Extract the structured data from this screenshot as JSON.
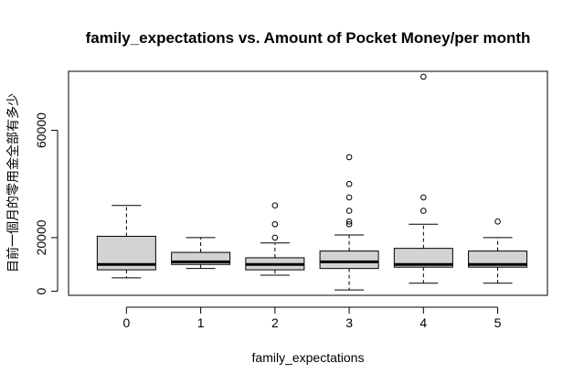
{
  "chart_data": {
    "type": "boxplot",
    "title": "family_expectations vs. Amount of Pocket Money/per month",
    "xlabel": "family_expectations",
    "ylabel": "目前一個月的零用金全部有多少",
    "categories": [
      "0",
      "1",
      "2",
      "3",
      "4",
      "5"
    ],
    "ylim": [
      -1500,
      82000
    ],
    "yticks": [
      0,
      20000,
      60000
    ],
    "box_fill": "#d3d3d3",
    "series": [
      {
        "category": "0",
        "whisker_low": 5000,
        "q1": 8000,
        "median": 10000,
        "q3": 20500,
        "whisker_high": 32000,
        "outliers": []
      },
      {
        "category": "1",
        "whisker_low": 8500,
        "q1": 10000,
        "median": 11000,
        "q3": 14500,
        "whisker_high": 20000,
        "outliers": []
      },
      {
        "category": "2",
        "whisker_low": 6000,
        "q1": 8000,
        "median": 10000,
        "q3": 12500,
        "whisker_high": 18000,
        "outliers": [
          20000,
          25000,
          32000
        ]
      },
      {
        "category": "3",
        "whisker_low": 500,
        "q1": 8500,
        "median": 11000,
        "q3": 15000,
        "whisker_high": 21000,
        "outliers": [
          25000,
          26000,
          30000,
          35000,
          40000,
          50000
        ]
      },
      {
        "category": "4",
        "whisker_low": 3000,
        "q1": 9000,
        "median": 10000,
        "q3": 16000,
        "whisker_high": 25000,
        "outliers": [
          30000,
          35000,
          80000
        ]
      },
      {
        "category": "5",
        "whisker_low": 3000,
        "q1": 9000,
        "median": 10000,
        "q3": 15000,
        "whisker_high": 20000,
        "outliers": [
          26000
        ]
      }
    ]
  }
}
